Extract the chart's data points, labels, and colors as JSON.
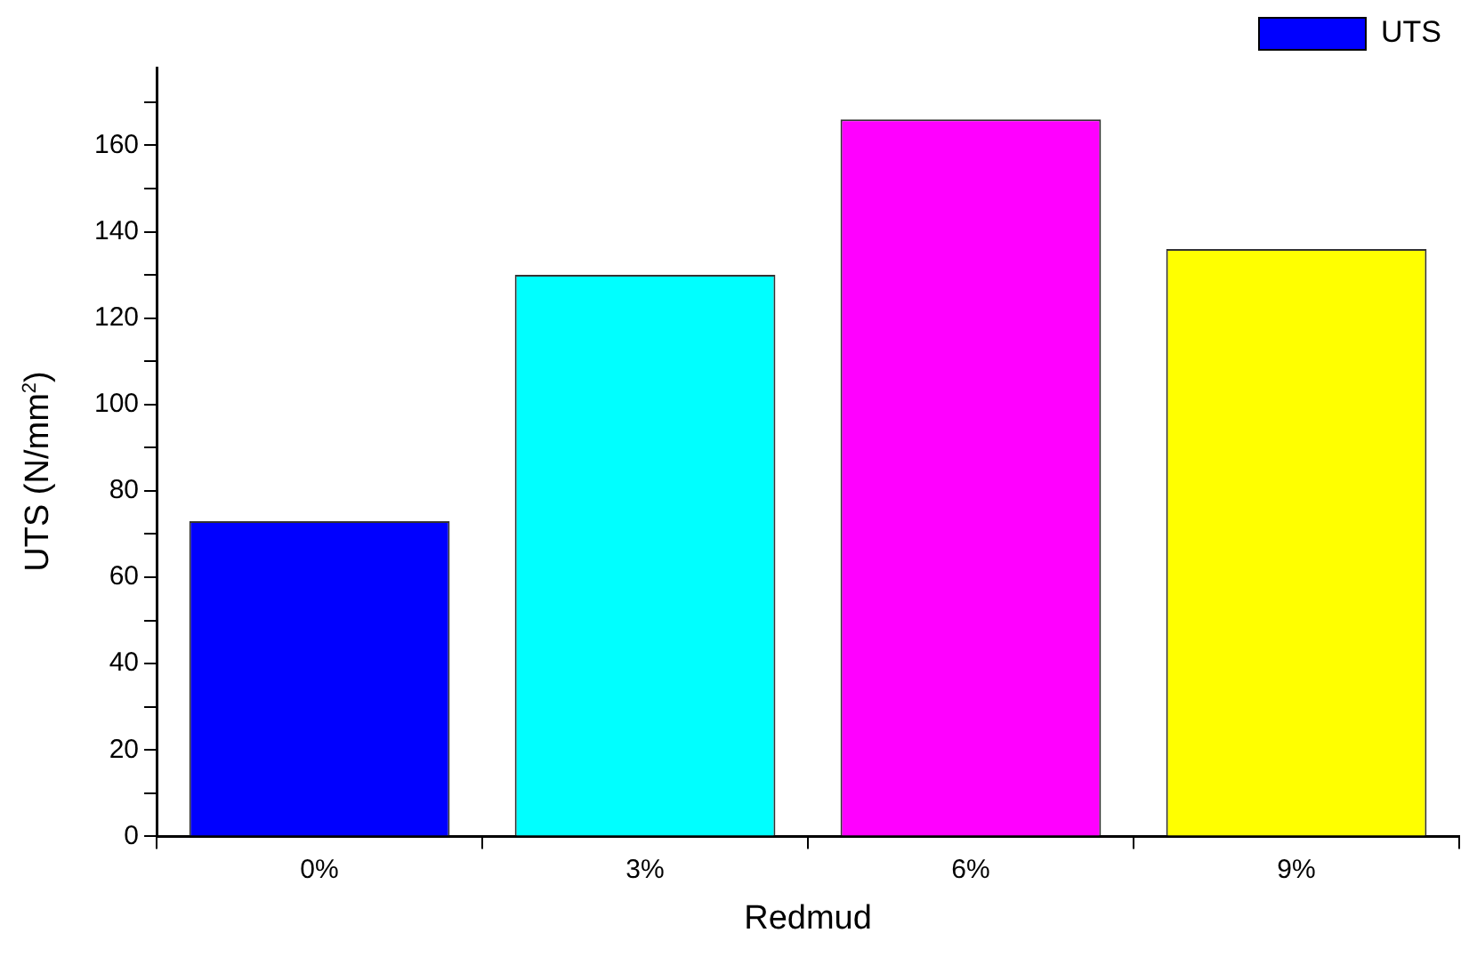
{
  "chart_data": {
    "type": "bar",
    "xlabel": "Redmud",
    "ylabel": "UTS (N/mm$^{2}$)",
    "categories": [
      "0%",
      "3%",
      "6%",
      "9%"
    ],
    "series": [
      {
        "name": "UTS",
        "color": "#0000ff",
        "colors": [
          "#0000ff",
          "#00ffff",
          "#ff00ff",
          "#ffff00"
        ],
        "values": [
          73,
          130,
          166,
          136
        ]
      }
    ],
    "ylim": [
      0,
      178
    ],
    "yticks": [
      0,
      {
        "value": 10,
        "label": null
      },
      20,
      {
        "value": 30,
        "label": null
      },
      40,
      {
        "value": 50,
        "label": null
      },
      60,
      {
        "value": 70,
        "label": null
      },
      80,
      {
        "value": 90,
        "label": null
      },
      100,
      {
        "value": 110,
        "label": null
      },
      120,
      {
        "value": 130,
        "label": null
      },
      140,
      {
        "value": 150,
        "label": null
      },
      160,
      {
        "value": 170,
        "label": null
      }
    ],
    "grid": false,
    "legend": "top right"
  }
}
